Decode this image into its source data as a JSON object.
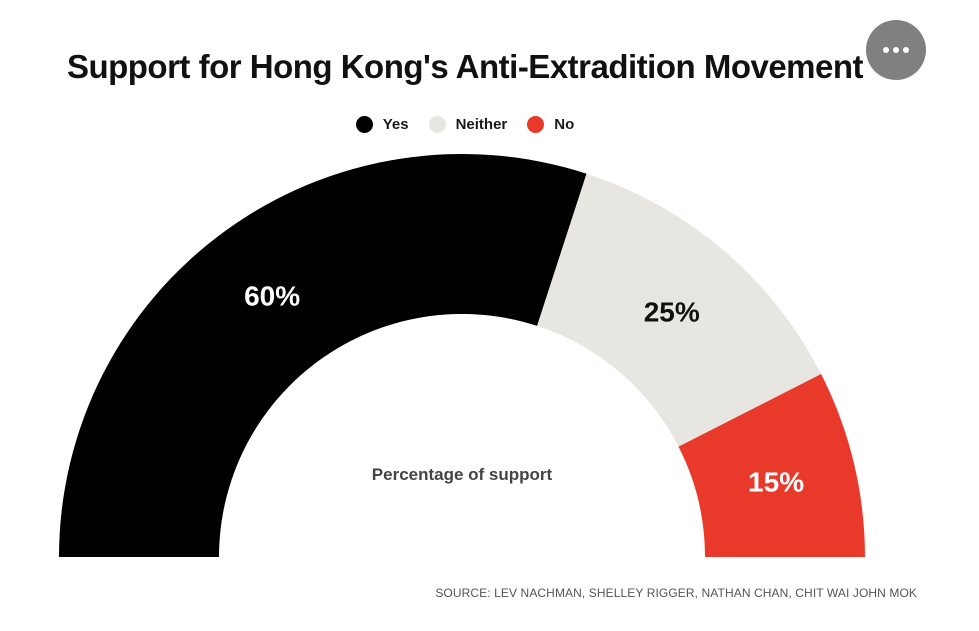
{
  "title": "Support for Hong Kong's Anti-Extradition Movement",
  "menu": {
    "icon": "more-horizontal-icon"
  },
  "legend": [
    {
      "label": "Yes",
      "color": "#000000"
    },
    {
      "label": "Neither",
      "color": "#e8e6e1"
    },
    {
      "label": "No",
      "color": "#e8392b"
    }
  ],
  "center_label": "Percentage of support",
  "source": "SOURCE: LEV NACHMAN, SHELLEY RIGGER, NATHAN CHAN, CHIT WAI JOHN MOK",
  "chart_data": {
    "type": "pie",
    "variant": "semicircle-donut",
    "title": "Support for Hong Kong's Anti-Extradition Movement",
    "categories": [
      "Yes",
      "Neither",
      "No"
    ],
    "values": [
      60,
      25,
      15
    ],
    "labels": [
      "60%",
      "25%",
      "15%"
    ],
    "colors": [
      "#000000",
      "#e8e6e1",
      "#e8392b"
    ],
    "label_colors": [
      "#ffffff",
      "#111111",
      "#ffffff"
    ],
    "center_label": "Percentage of support",
    "legend_position": "top-center"
  }
}
